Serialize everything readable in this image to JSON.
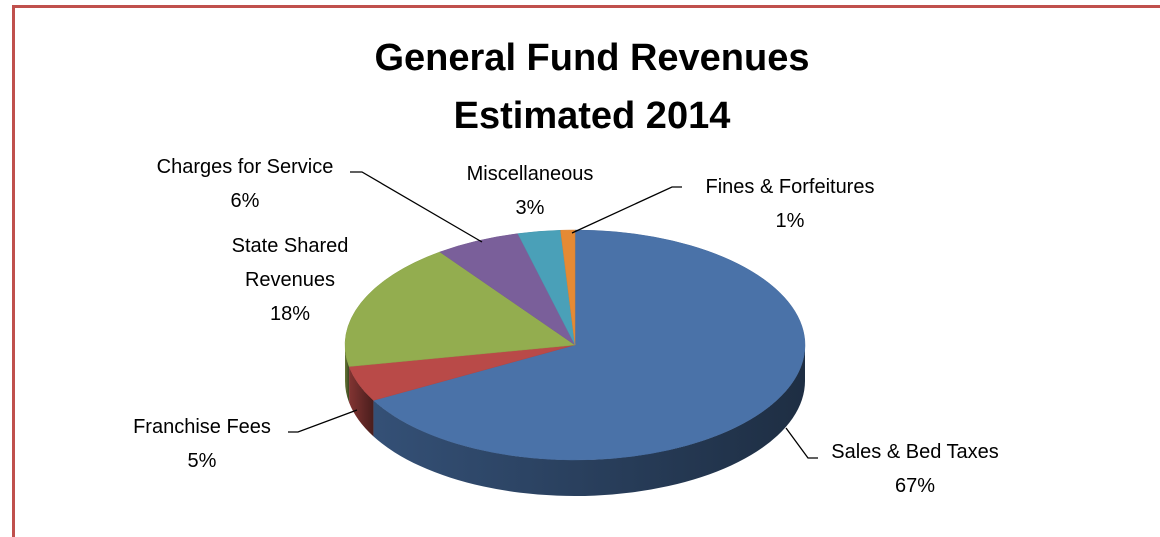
{
  "chart_data": {
    "type": "pie",
    "title": "General Fund Revenues",
    "subtitle": "Estimated 2014",
    "categories": [
      "Sales & Bed Taxes",
      "Franchise Fees",
      "State Shared Revenues",
      "Charges for Service",
      "Miscellaneous",
      "Fines & Forfeitures"
    ],
    "values": [
      67,
      5,
      18,
      6,
      3,
      1
    ],
    "value_labels": [
      "67%",
      "5%",
      "18%",
      "6%",
      "3%",
      "1%"
    ],
    "colors": [
      "#4a72a8",
      "#b94a48",
      "#93ad4f",
      "#7a5f9a",
      "#4aa0b8",
      "#e58a34"
    ]
  }
}
